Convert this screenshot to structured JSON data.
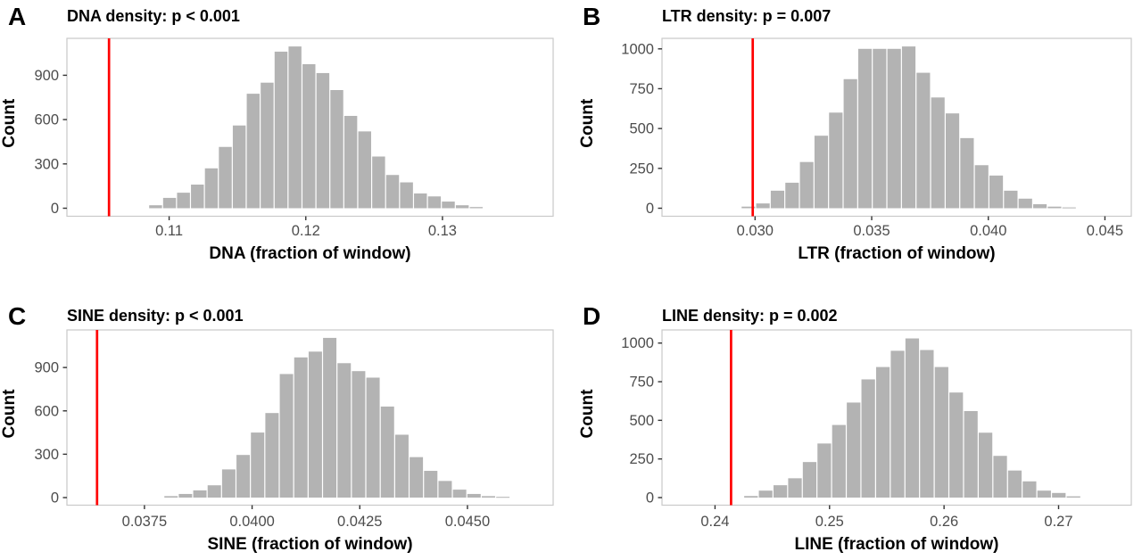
{
  "figure": {
    "background": "#ffffff"
  },
  "colors": {
    "bar_fill": "#b3b3b3",
    "observed_line": "#ff0000",
    "panel_border": "#c9c9c9",
    "tick_mark": "#333333",
    "tick_label": "#4d4d4d",
    "text": "#000000"
  },
  "chart_data": [
    {
      "type": "bar",
      "panel_label": "A",
      "title": "DNA density: p < 0.001",
      "xlabel": "DNA (fraction of window)",
      "ylabel": "Count",
      "observed_value": 0.1056,
      "bin_start": 0.1085,
      "bin_width": 0.00102,
      "counts": [
        20,
        70,
        105,
        160,
        270,
        415,
        560,
        775,
        850,
        1060,
        1095,
        975,
        915,
        800,
        625,
        520,
        350,
        225,
        175,
        100,
        80,
        45,
        20,
        8
      ],
      "xlim": [
        0.10252,
        0.1381
      ],
      "ylim": [
        0,
        1150
      ],
      "xticks": [
        0.11,
        0.12,
        0.13
      ],
      "xtick_labels": [
        "0.11",
        "0.12",
        "0.13"
      ],
      "yticks": [
        0,
        300,
        600,
        900
      ],
      "ytick_labels": [
        "0",
        "300",
        "600",
        "900"
      ],
      "grid": false,
      "legend": "none",
      "layout": {
        "row": 0,
        "col": 0
      }
    },
    {
      "type": "bar",
      "panel_label": "B",
      "title": "LTR density: p = 0.007",
      "xlabel": "LTR (fraction of window)",
      "ylabel": "Count",
      "observed_value": 0.0299,
      "bin_start": 0.0294,
      "bin_width": 0.000625,
      "counts": [
        10,
        30,
        110,
        160,
        290,
        455,
        600,
        810,
        1000,
        1000,
        1000,
        1015,
        850,
        695,
        595,
        440,
        270,
        205,
        110,
        60,
        25,
        10,
        5
      ],
      "xlim": [
        0.02601,
        0.04613
      ],
      "ylim": [
        0,
        1066
      ],
      "xticks": [
        0.03,
        0.035,
        0.04,
        0.045
      ],
      "xtick_labels": [
        "0.030",
        "0.035",
        "0.040",
        "0.045"
      ],
      "yticks": [
        0,
        250,
        500,
        750,
        1000
      ],
      "ytick_labels": [
        "0",
        "250",
        "500",
        "750",
        "1000"
      ],
      "grid": false,
      "legend": "none",
      "layout": {
        "row": 0,
        "col": 1
      }
    },
    {
      "type": "bar",
      "panel_label": "C",
      "title": "SINE density: p < 0.001",
      "xlabel": "SINE (fraction of window)",
      "ylabel": "Count",
      "observed_value": 0.0364,
      "bin_start": 0.03795,
      "bin_width": 0.000335,
      "counts": [
        10,
        25,
        50,
        85,
        195,
        295,
        450,
        585,
        855,
        970,
        1010,
        1105,
        930,
        875,
        830,
        630,
        435,
        280,
        185,
        115,
        55,
        25,
        10,
        5
      ],
      "xlim": [
        0.0357,
        0.04699
      ],
      "ylim": [
        0,
        1160
      ],
      "xticks": [
        0.0375,
        0.04,
        0.0425,
        0.045
      ],
      "xtick_labels": [
        "0.0375",
        "0.0400",
        "0.0425",
        "0.0450"
      ],
      "yticks": [
        0,
        300,
        600,
        900
      ],
      "ytick_labels": [
        "0",
        "300",
        "600",
        "900"
      ],
      "grid": false,
      "legend": "none",
      "layout": {
        "row": 1,
        "col": 0
      }
    },
    {
      "type": "bar",
      "panel_label": "D",
      "title": "LINE density: p = 0.002",
      "xlabel": "LINE (fraction of window)",
      "ylabel": "Count",
      "observed_value": 0.2414,
      "bin_start": 0.2425,
      "bin_width": 0.00128,
      "counts": [
        10,
        45,
        80,
        125,
        230,
        350,
        470,
        615,
        765,
        845,
        950,
        1030,
        955,
        845,
        680,
        560,
        420,
        270,
        175,
        105,
        45,
        30,
        8
      ],
      "xlim": [
        0.23537,
        0.27635
      ],
      "ylim": [
        0,
        1085
      ],
      "xticks": [
        0.24,
        0.25,
        0.26,
        0.27
      ],
      "xtick_labels": [
        "0.24",
        "0.25",
        "0.26",
        "0.27"
      ],
      "yticks": [
        0,
        250,
        500,
        750,
        1000
      ],
      "ytick_labels": [
        "0",
        "250",
        "500",
        "750",
        "1000"
      ],
      "grid": false,
      "legend": "none",
      "layout": {
        "row": 1,
        "col": 1
      }
    }
  ]
}
